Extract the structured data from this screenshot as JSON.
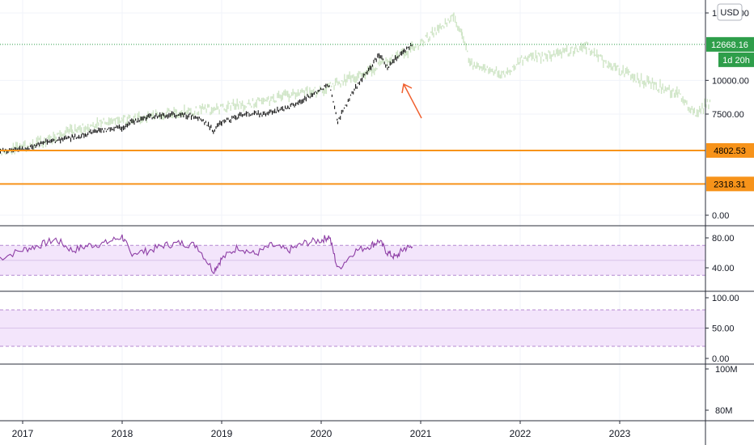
{
  "chart_data": [
    {
      "type": "candlestick",
      "pane": "price",
      "currency": "USD",
      "price_axis": {
        "ticks": [
          "15000.00",
          "12668.16",
          "10000.00",
          "7500.00",
          "0.00"
        ],
        "tick_values": [
          15000,
          10000,
          7500,
          0
        ],
        "range": [
          -500,
          16100
        ]
      },
      "last_price": {
        "label": "12668.16",
        "value": 12668.16,
        "countdown": "1d 20h",
        "color": "#2e9e4a"
      },
      "horizontal_lines": [
        {
          "label": "4802.53",
          "value": 4802.53,
          "color": "#f7931a"
        },
        {
          "label": "2318.31",
          "value": 2318.31,
          "color": "#f7931a"
        }
      ],
      "price_series": {
        "name": "",
        "color": "#111111",
        "x": [
          "2016-10",
          "2017-01",
          "2017-04",
          "2017-07",
          "2017-10",
          "2018-01",
          "2018-02",
          "2018-04",
          "2018-07",
          "2018-10",
          "2018-12",
          "2019-01",
          "2019-04",
          "2019-06",
          "2019-09",
          "2019-12",
          "2020-02",
          "2020-03",
          "2020-05",
          "2020-08",
          "2020-09",
          "2020-11",
          "2020-12"
        ],
        "y": [
          4760,
          4860,
          5450,
          5750,
          6220,
          6500,
          6900,
          7250,
          7450,
          7350,
          6300,
          6850,
          7600,
          7450,
          7950,
          9000,
          9650,
          7000,
          9300,
          11900,
          11000,
          12200,
          12670
        ]
      },
      "projection_series": {
        "name": "",
        "color": "#cfe5c6",
        "x": [
          "2016-10",
          "2017-03",
          "2017-07",
          "2017-10",
          "2018-01",
          "2018-06",
          "2019-01",
          "2019-06",
          "2020-01",
          "2020-06",
          "2021-01",
          "2021-04",
          "2021-05",
          "2021-06",
          "2021-07",
          "2021-11",
          "2022-01",
          "2022-06",
          "2022-09",
          "2022-12",
          "2023-04",
          "2023-08",
          "2023-10",
          "2023-12"
        ],
        "y": [
          4600,
          5400,
          6250,
          6800,
          7050,
          7550,
          7900,
          8500,
          9300,
          10500,
          12700,
          14300,
          15000,
          13200,
          11300,
          10400,
          11500,
          12000,
          12500,
          11000,
          9900,
          9000,
          7500,
          8400
        ]
      },
      "annotations": [
        {
          "type": "arrow",
          "color": "#f0602f"
        }
      ]
    },
    {
      "type": "line",
      "pane": "rsi",
      "axis": {
        "ticks": [
          "80.00",
          "40.00"
        ],
        "range": [
          25,
          95
        ]
      },
      "bands": {
        "upper": 70,
        "middle": 50,
        "lower": 30,
        "fill": "#f3e5fb",
        "line": "#b48ad1"
      },
      "series": [
        {
          "name": "",
          "color": "#8e3fa6",
          "x": [
            "2016-10",
            "2017-01",
            "2017-03",
            "2017-05",
            "2017-07",
            "2017-09",
            "2017-11",
            "2018-01",
            "2018-02",
            "2018-04",
            "2018-06",
            "2018-08",
            "2018-10",
            "2018-12",
            "2019-01",
            "2019-03",
            "2019-05",
            "2019-07",
            "2019-09",
            "2019-11",
            "2020-01",
            "2020-02",
            "2020-03",
            "2020-05",
            "2020-07",
            "2020-08",
            "2020-09",
            "2020-10",
            "2020-11",
            "2020-12"
          ],
          "y": [
            52,
            64,
            70,
            78,
            63,
            70,
            73,
            82,
            60,
            62,
            70,
            73,
            70,
            36,
            52,
            68,
            58,
            70,
            63,
            73,
            77,
            82,
            38,
            62,
            70,
            76,
            60,
            54,
            66,
            68
          ]
        }
      ]
    },
    {
      "type": "line",
      "pane": "empty-oscillator",
      "axis": {
        "ticks": [
          "100.00",
          "50.00",
          "0.00"
        ],
        "range": [
          0,
          115
        ]
      },
      "bands": {
        "upper": 80,
        "middle": 50,
        "lower": 20,
        "fill": "#f3e5fb",
        "line": "#b48ad1"
      }
    },
    {
      "type": "bar",
      "pane": "volume",
      "axis": {
        "ticks": [
          "100M",
          "80M"
        ]
      }
    },
    {
      "type": "time-axis",
      "x_ticks": [
        "2017",
        "2018",
        "2019",
        "2020",
        "2021",
        "2022",
        "2023"
      ]
    }
  ]
}
